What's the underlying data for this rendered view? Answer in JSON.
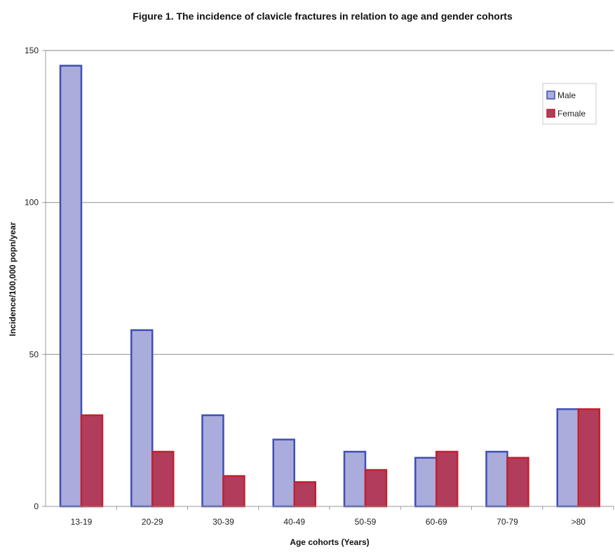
{
  "chart_data": {
    "type": "bar",
    "title": "Figure 1. The incidence of clavicle fractures in relation to age and gender cohorts",
    "xlabel": "Age cohorts (Years)",
    "ylabel": "Incidence/100,000 popn/year",
    "categories": [
      "13-19",
      "20-29",
      "30-39",
      "40-49",
      "50-59",
      "60-69",
      "70-79",
      ">80"
    ],
    "series": [
      {
        "name": "Male",
        "values": [
          145,
          58,
          30,
          22,
          18,
          16,
          18,
          32
        ],
        "color": "#aaacdc",
        "edge": "#3f4fb5"
      },
      {
        "name": "Female",
        "values": [
          30,
          18,
          10,
          8,
          12,
          18,
          16,
          32
        ],
        "color": "#b13c5c",
        "edge": "#c0222e"
      }
    ],
    "ylim": [
      0,
      150
    ],
    "yticks": [
      0,
      50,
      100,
      150
    ],
    "grid": true,
    "legend": "top-right"
  }
}
